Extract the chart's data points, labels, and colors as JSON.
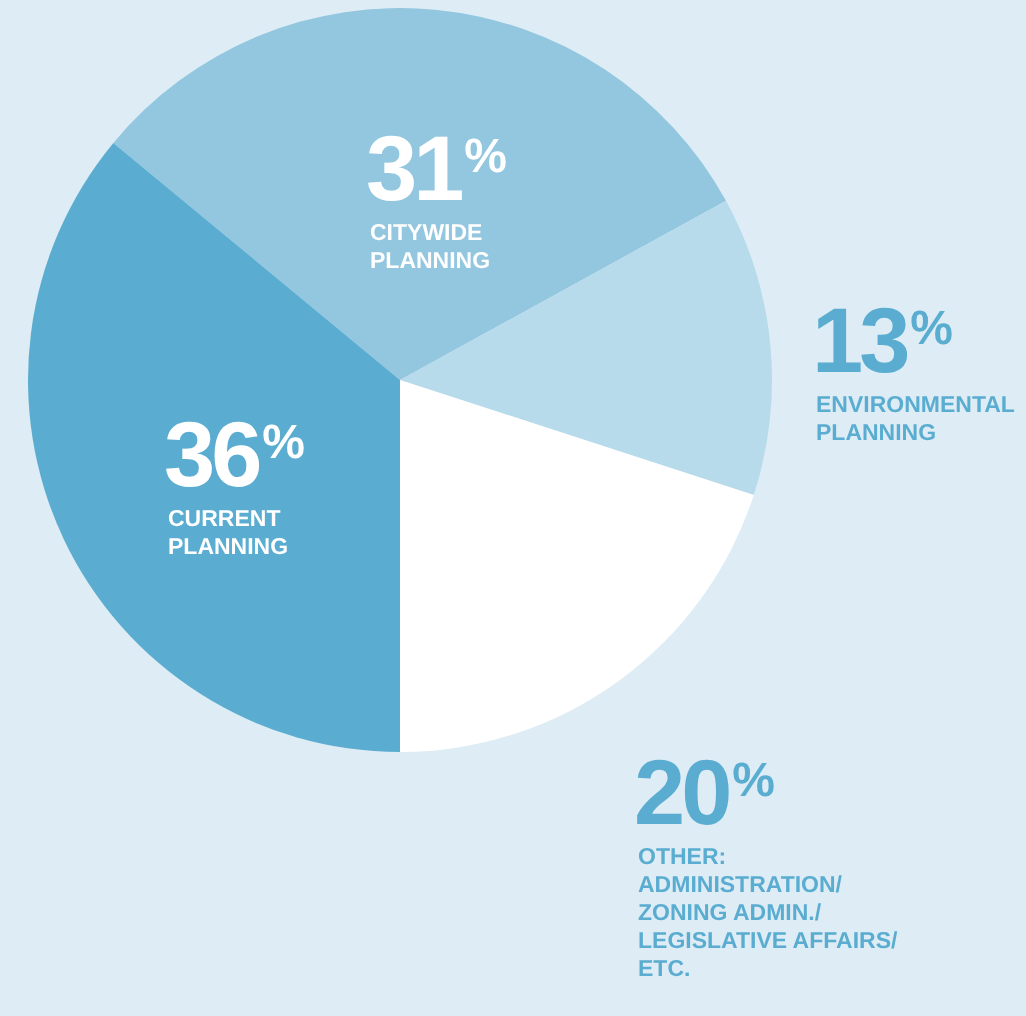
{
  "chart_data": {
    "type": "pie",
    "categories": [
      "CITYWIDE PLANNING",
      "ENVIRONMENTAL PLANNING",
      "OTHER: ADMINISTRATION/ ZONING ADMIN./ LEGISLATIVE AFFAIRS/ ETC.",
      "CURRENT PLANNING"
    ],
    "values": [
      31,
      13,
      20,
      36
    ],
    "value_labels": [
      "31$^{%}$",
      "13$^{%}$",
      "20$^{%}$",
      "36$^{%}$"
    ],
    "colors": [
      "#93c6df",
      "#b7dbeb",
      "#ffffff",
      "#5aadd0"
    ]
  }
}
